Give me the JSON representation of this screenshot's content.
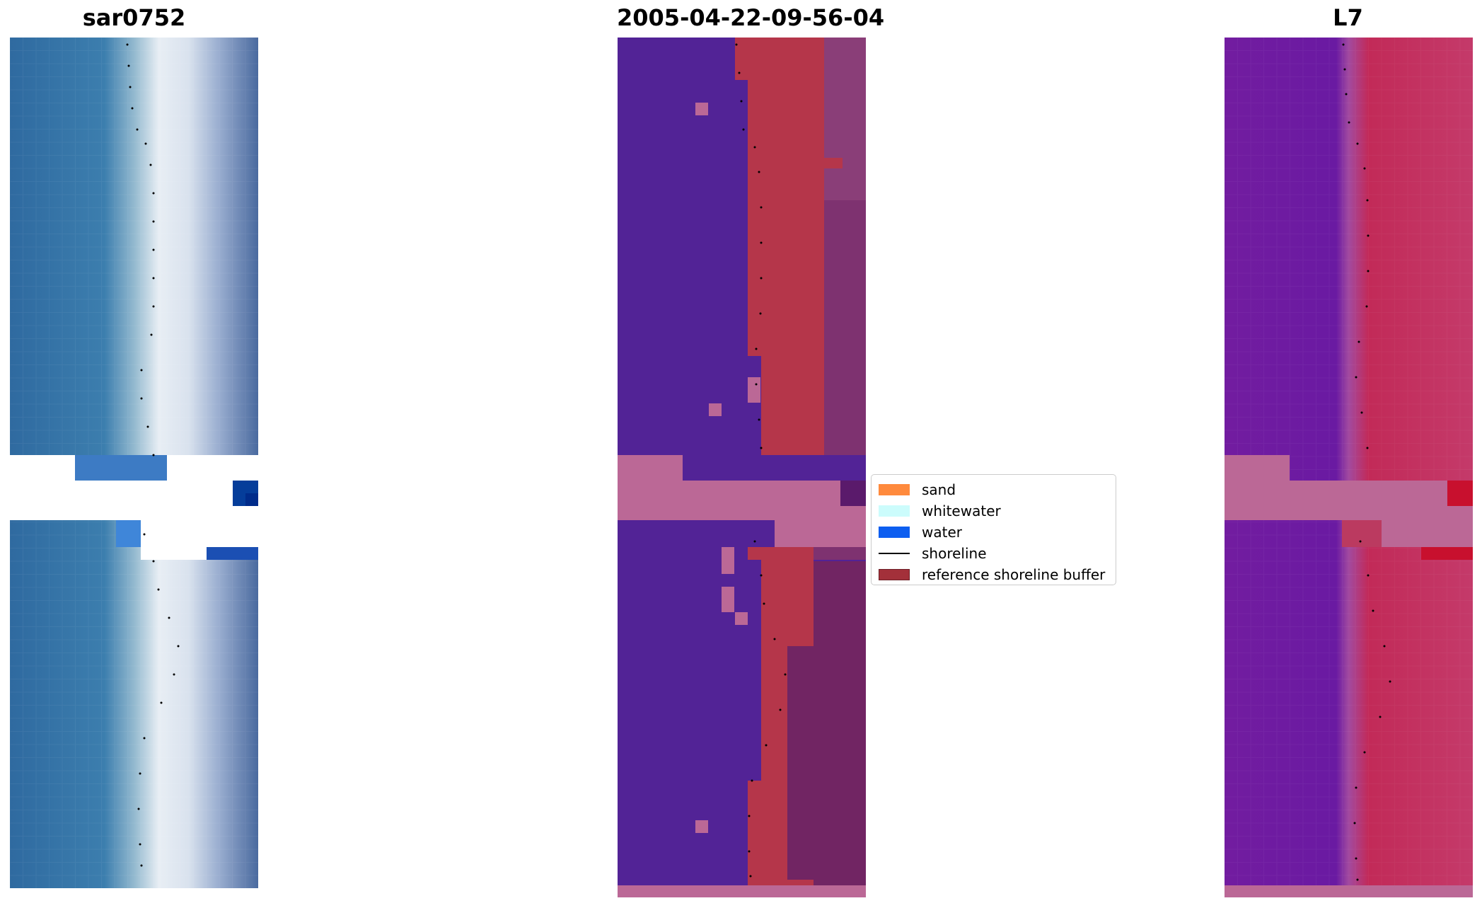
{
  "panels": {
    "left": {
      "title": "sar0752"
    },
    "middle": {
      "title": "2005-04-22-09-56-04"
    },
    "right": {
      "title": "L7"
    }
  },
  "legend": {
    "items": [
      {
        "label": "sand",
        "color": "#ff8a3d"
      },
      {
        "label": "whitewater",
        "color": "#ccfcfc"
      },
      {
        "label": "water",
        "color": "#0d5ef0"
      },
      {
        "label": "shoreline",
        "color": "#000000"
      },
      {
        "label": "reference shoreline buffer",
        "color": "#a3303a"
      }
    ]
  },
  "colors": {
    "classified_water": "#522396",
    "classified_buffer": "#b5364a",
    "nodata_pink": "#bb6896",
    "l7_purple": "#6c1a9c",
    "l7_red": "#c42653"
  }
}
